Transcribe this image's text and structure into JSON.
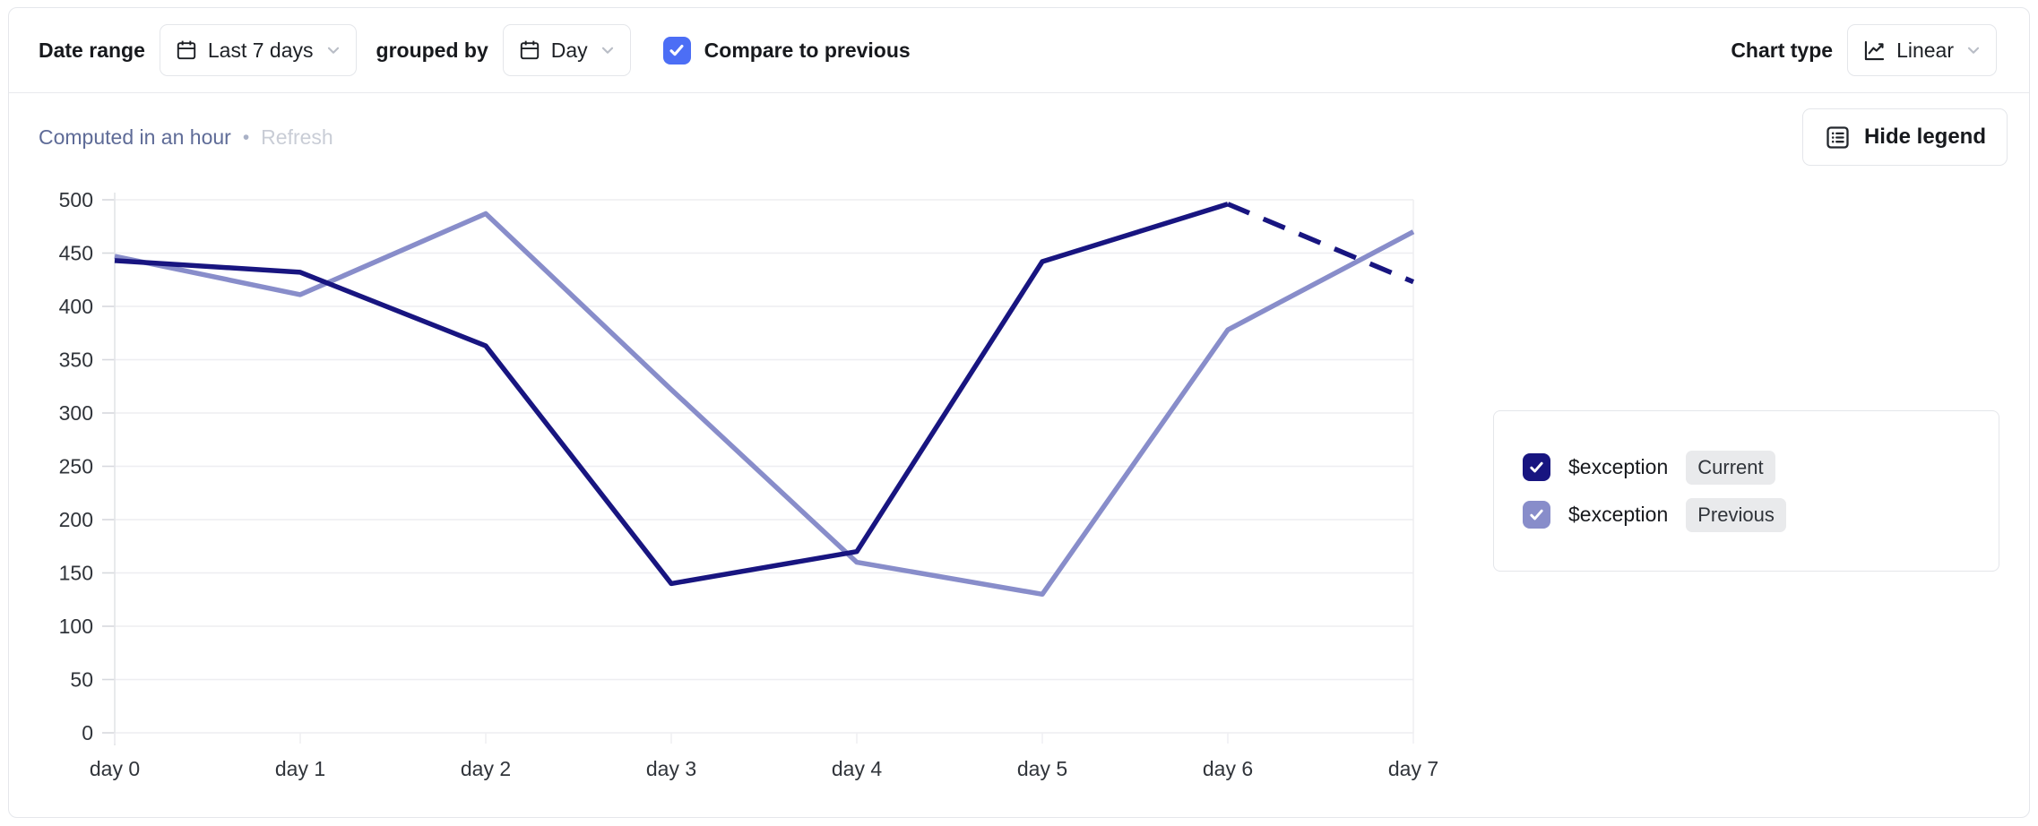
{
  "toolbar": {
    "date_range_label": "Date range",
    "date_range_value": "Last 7 days",
    "grouped_by_label": "grouped by",
    "grouped_by_value": "Day",
    "compare_label": "Compare to previous",
    "compare_checked": true,
    "chart_type_label": "Chart type",
    "chart_type_value": "Linear"
  },
  "status": {
    "computed_text": "Computed in an hour",
    "separator": "•",
    "refresh_label": "Refresh"
  },
  "legend_button": {
    "label": "Hide legend"
  },
  "legend": {
    "items": [
      {
        "name": "$exception",
        "tag": "Current",
        "color": "#181580",
        "checked": true
      },
      {
        "name": "$exception",
        "tag": "Previous",
        "color": "#888dca",
        "checked": true
      }
    ]
  },
  "icons": {
    "date_range": "calendar-icon",
    "grouped_by": "calendar-icon",
    "dropdowns": "chevron-down-icon",
    "chart_type": "line-chart-icon",
    "hide_legend": "list-icon",
    "checkboxes": "checkmark-icon"
  },
  "colors": {
    "accent_blue": "#4c6ef5",
    "current_series": "#181580",
    "previous_series": "#888dca",
    "grid": "#eeeef1",
    "axis": "#e3e4e8",
    "tick": "#d7d9de",
    "axis_text": "#30343a",
    "card_border": "#e5e7eb",
    "computed_text": "#5e6b97",
    "refresh_text": "#c9cdd6"
  },
  "chart_data": {
    "type": "line",
    "title": "",
    "xlabel": "",
    "ylabel": "",
    "x": [
      "day 0",
      "day 1",
      "day 2",
      "day 3",
      "day 4",
      "day 5",
      "day 6",
      "day 7"
    ],
    "series": [
      {
        "name": "$exception (Current)",
        "values": [
          443,
          432,
          363,
          140,
          170,
          442,
          496,
          423
        ],
        "color": "#181580",
        "dashed_from_index": 6
      },
      {
        "name": "$exception (Previous)",
        "values": [
          447,
          411,
          487,
          322,
          160,
          130,
          378,
          470
        ],
        "color": "#888dca",
        "dashed_from_index": null
      }
    ],
    "ylim": [
      0,
      500
    ],
    "yticks": [
      0,
      50,
      100,
      150,
      200,
      250,
      300,
      350,
      400,
      450,
      500
    ],
    "grid": true,
    "legend_position": "right"
  }
}
